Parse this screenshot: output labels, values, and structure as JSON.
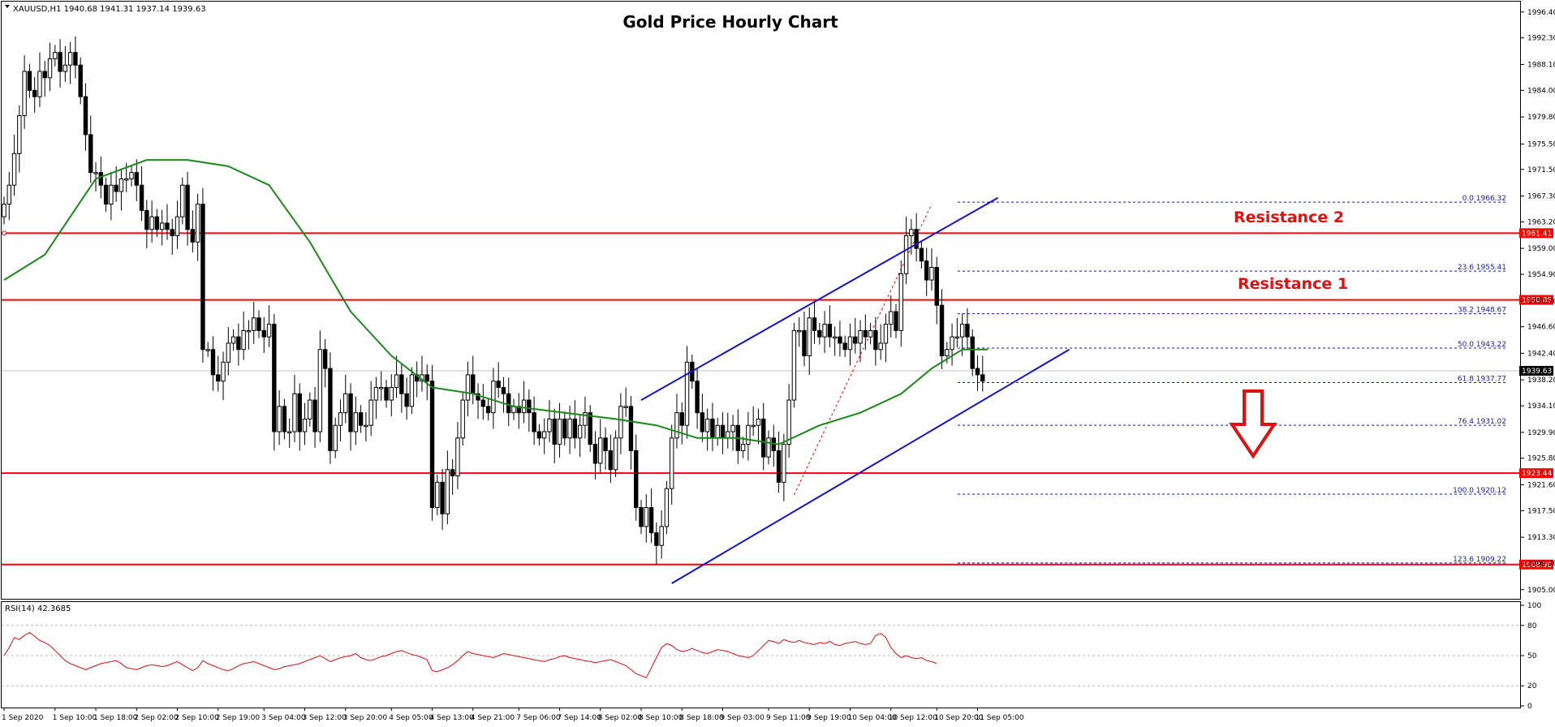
{
  "chart_data": {
    "type": "candlestick",
    "symbol_info": "XAUUSD,H1  1940.68 1941.31 1937.14 1939.63",
    "title": "Gold Price Hourly Chart",
    "price_ticks": [
      "1996.40",
      "1992.30",
      "1988.10",
      "1984.00",
      "1979.80",
      "1975.50",
      "1971.50",
      "1967.30",
      "1963.20",
      "1959.00",
      "1954.90",
      "1950.70",
      "1946.60",
      "1942.40",
      "1938.20",
      "1934.10",
      "1929.90",
      "1925.80",
      "1921.60",
      "1917.50",
      "1913.30",
      "1909.20",
      "1905.00"
    ],
    "price_range": [
      1904.2,
      1997.4
    ],
    "time_labels": [
      {
        "label": "1 Sep 2020",
        "i": 0
      },
      {
        "label": "1 Sep 10:00",
        "i": 10
      },
      {
        "label": "1 Sep 18:00",
        "i": 18
      },
      {
        "label": "2 Sep 02:00",
        "i": 26
      },
      {
        "label": "2 Sep 10:00",
        "i": 34
      },
      {
        "label": "2 Sep 19:00",
        "i": 42
      },
      {
        "label": "3 Sep 04:00",
        "i": 51
      },
      {
        "label": "3 Sep 12:00",
        "i": 59
      },
      {
        "label": "3 Sep 20:00",
        "i": 67
      },
      {
        "label": "4 Sep 05:00",
        "i": 76
      },
      {
        "label": "4 Sep 13:00",
        "i": 84
      },
      {
        "label": "4 Sep 21:00",
        "i": 92
      },
      {
        "label": "7 Sep 06:00",
        "i": 101
      },
      {
        "label": "7 Sep 14:00",
        "i": 109
      },
      {
        "label": "8 Sep 02:00",
        "i": 117
      },
      {
        "label": "8 Sep 10:00",
        "i": 125
      },
      {
        "label": "8 Sep 18:00",
        "i": 133
      },
      {
        "label": "9 Sep 03:00",
        "i": 141
      },
      {
        "label": "9 Sep 11:00",
        "i": 150
      },
      {
        "label": "9 Sep 19:00",
        "i": 158
      },
      {
        "label": "10 Sep 04:00",
        "i": 166
      },
      {
        "label": "10 Sep 12:00",
        "i": 174
      },
      {
        "label": "10 Sep 20:00",
        "i": 183
      },
      {
        "label": "11 Sep 05:00",
        "i": 191
      }
    ],
    "candles_close": [
      1966,
      1969,
      1974,
      1980,
      1987,
      1984,
      1983,
      1987,
      1986,
      1989,
      1990,
      1987,
      1988,
      1990,
      1988,
      1983,
      1977,
      1971,
      1971,
      1969,
      1966,
      1969,
      1968,
      1970,
      1970,
      1971,
      1969,
      1965,
      1962,
      1964,
      1962,
      1963,
      1962,
      1961,
      1964,
      1969,
      1962,
      1960,
      1966,
      1943,
      1943,
      1939,
      1938,
      1941,
      1944,
      1945,
      1943,
      1946,
      1946,
      1948,
      1946,
      1945,
      1947,
      1930,
      1934,
      1930,
      1930,
      1936,
      1930,
      1932,
      1935,
      1930,
      1943,
      1940,
      1927,
      1931,
      1933,
      1936,
      1930,
      1933,
      1931,
      1931,
      1935,
      1937,
      1937,
      1935,
      1937,
      1939,
      1936,
      1934,
      1939,
      1938,
      1939,
      1938,
      1918,
      1922,
      1917,
      1924,
      1923,
      1929,
      1935,
      1939,
      1936,
      1935,
      1934,
      1933,
      1938,
      1937,
      1936,
      1933,
      1934,
      1933,
      1935,
      1933,
      1930,
      1929,
      1930,
      1932,
      1928,
      1932,
      1929,
      1932,
      1929,
      1931,
      1933,
      1928,
      1925,
      1929,
      1927,
      1924,
      1929,
      1934,
      1934,
      1927,
      1918,
      1915,
      1918,
      1914,
      1912,
      1915,
      1921,
      1929,
      1933,
      1931,
      1941,
      1938,
      1933,
      1930,
      1932,
      1929,
      1931,
      1929,
      1930,
      1931,
      1927,
      1928,
      1931,
      1931,
      1932,
      1926,
      1929,
      1927,
      1922,
      1928,
      1935,
      1946,
      1946,
      1942,
      1948,
      1946,
      1945,
      1947,
      1945,
      1945,
      1944,
      1943,
      1945,
      1944,
      1946,
      1945,
      1946,
      1943,
      1944,
      1947,
      1949,
      1946,
      1955,
      1961,
      1962,
      1959,
      1957,
      1954,
      1956,
      1950,
      1942,
      1943,
      1945,
      1945,
      1947,
      1945,
      1940,
      1939,
      1938
    ],
    "ma_points": [
      [
        0,
        1954
      ],
      [
        8,
        1958
      ],
      [
        18,
        1970
      ],
      [
        28,
        1973
      ],
      [
        36,
        1973
      ],
      [
        44,
        1972
      ],
      [
        52,
        1969
      ],
      [
        60,
        1960
      ],
      [
        68,
        1949
      ],
      [
        76,
        1942
      ],
      [
        84,
        1937
      ],
      [
        92,
        1936
      ],
      [
        100,
        1934
      ],
      [
        110,
        1933
      ],
      [
        120,
        1932
      ],
      [
        128,
        1931
      ],
      [
        136,
        1929
      ],
      [
        144,
        1929
      ],
      [
        152,
        1928
      ],
      [
        160,
        1931
      ],
      [
        168,
        1933
      ],
      [
        176,
        1936
      ],
      [
        182,
        1940
      ],
      [
        188,
        1943
      ],
      [
        193,
        1943
      ]
    ],
    "horizontal_levels": [
      {
        "price": 1961.41,
        "label": "1961.41"
      },
      {
        "price": 1950.85,
        "label": "1950.85"
      },
      {
        "price": 1923.44,
        "label": "1923.44"
      },
      {
        "price": 1908.98,
        "label": "1908.98"
      }
    ],
    "current_price": {
      "price": 1939.63,
      "label": "1939.63"
    },
    "fib_levels": [
      {
        "price": 1966.32,
        "label": "0.0 1966.32"
      },
      {
        "price": 1955.41,
        "label": "23.6 1955.41"
      },
      {
        "price": 1948.67,
        "label": "38.2 1948.67"
      },
      {
        "price": 1943.22,
        "label": "50.0 1943.22"
      },
      {
        "price": 1937.77,
        "label": "61.8 1937.77"
      },
      {
        "price": 1931.02,
        "label": "76.4 1931.02"
      },
      {
        "price": 1920.12,
        "label": "100.0 1920.12"
      },
      {
        "price": 1909.22,
        "label": "123.6 1909.22"
      }
    ],
    "channel_upper": [
      [
        125,
        1935
      ],
      [
        195,
        1967
      ]
    ],
    "channel_lower": [
      [
        131,
        1906
      ],
      [
        209,
        1943
      ]
    ],
    "fib_swing": [
      [
        155,
        1920
      ],
      [
        182,
        1966
      ]
    ],
    "annotations": [
      "Resistance 2",
      "Resistance 1"
    ],
    "rsi": {
      "label": "RSI(14) 42.3685",
      "ticks": [
        "100",
        "80",
        "50",
        "20",
        "0"
      ],
      "values": [
        50,
        58,
        68,
        66,
        70,
        73,
        69,
        65,
        63,
        60,
        55,
        50,
        45,
        42,
        40,
        38,
        36,
        38,
        40,
        42,
        43,
        44,
        45,
        42,
        38,
        37,
        36,
        38,
        40,
        41,
        40,
        39,
        40,
        42,
        44,
        41,
        38,
        35,
        38,
        45,
        42,
        40,
        38,
        36,
        35,
        37,
        40,
        42,
        43,
        44,
        42,
        40,
        38,
        36,
        37,
        39,
        40,
        41,
        42,
        44,
        46,
        48,
        50,
        47,
        44,
        46,
        48,
        49,
        50,
        52,
        48,
        46,
        45,
        47,
        49,
        50,
        52,
        54,
        55,
        53,
        51,
        50,
        48,
        46,
        35,
        34,
        36,
        38,
        41,
        45,
        50,
        54,
        52,
        51,
        50,
        49,
        48,
        50,
        52,
        51,
        50,
        49,
        48,
        47,
        46,
        45,
        44,
        46,
        47,
        49,
        50,
        48,
        47,
        46,
        45,
        44,
        43,
        44,
        45,
        46,
        44,
        42,
        40,
        36,
        32,
        30,
        28,
        38,
        48,
        58,
        62,
        60,
        56,
        54,
        55,
        57,
        55,
        53,
        52,
        54,
        56,
        55,
        54,
        52,
        50,
        49,
        48,
        50,
        55,
        60,
        65,
        64,
        62,
        66,
        64,
        63,
        65,
        63,
        62,
        61,
        63,
        62,
        64,
        61,
        60,
        62,
        63,
        64,
        62,
        61,
        62,
        70,
        72,
        68,
        58,
        52,
        48,
        50,
        48,
        47,
        48,
        45,
        44,
        42
      ]
    }
  }
}
